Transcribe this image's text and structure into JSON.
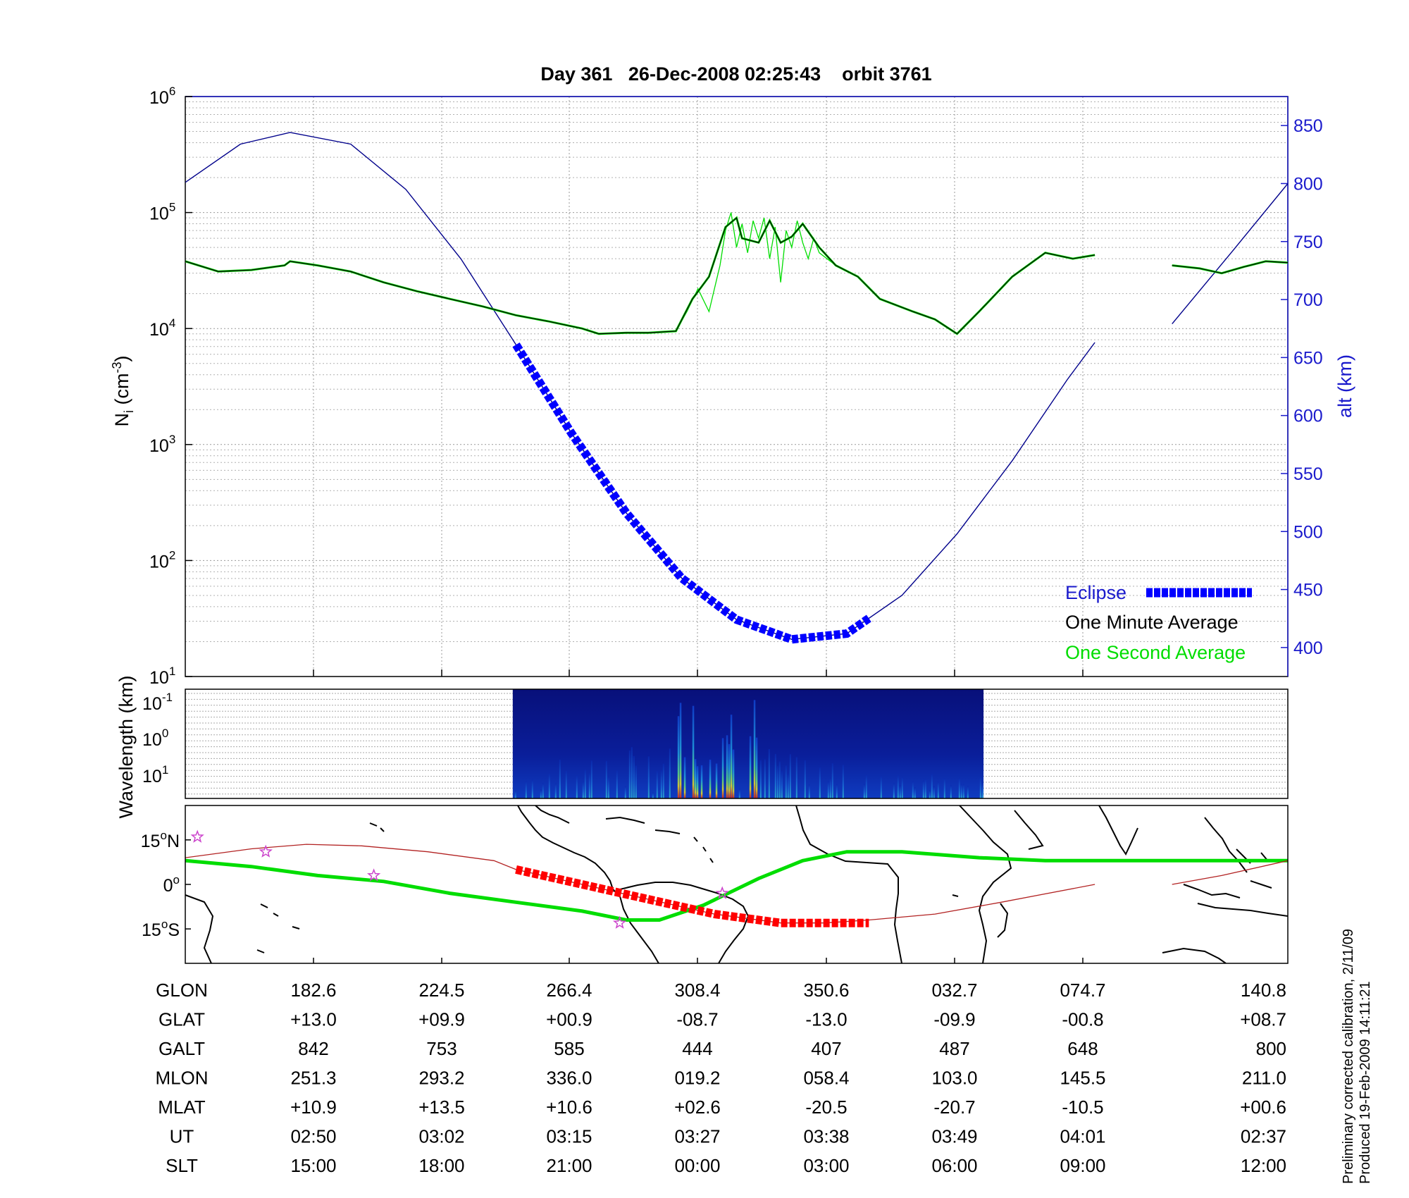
{
  "title": "Day 361   26-Dec-2008 02:25:43    orbit 3761",
  "footer": {
    "line1": "Preliminary corrected calibration, 2/11/09",
    "line2": "Produced 19-Feb-2009 14:11:21"
  },
  "colors": {
    "eclipse": "#0000ff",
    "one_minute_average": "#000000",
    "one_second_average": "#00dd00",
    "altitude_curve": "#00008b",
    "ground_track_eclipse": "#ff0000",
    "magnetic_equator": "#00dd00",
    "stars": "#cc44cc"
  },
  "chart_data": [
    {
      "type": "line",
      "panel": "density",
      "ylabel_left": "N_i (cm^-3)",
      "ylabel_right": "alt (km)",
      "yscale_left": "log",
      "ylim_left": [
        10,
        1000000
      ],
      "left_ticks": [
        {
          "base": "10",
          "exp": "1"
        },
        {
          "base": "10",
          "exp": "2"
        },
        {
          "base": "10",
          "exp": "3"
        },
        {
          "base": "10",
          "exp": "4"
        },
        {
          "base": "10",
          "exp": "5"
        },
        {
          "base": "10",
          "exp": "6"
        }
      ],
      "ylim_right": [
        375,
        875
      ],
      "right_ticks": [
        "400",
        "450",
        "500",
        "550",
        "600",
        "650",
        "700",
        "750",
        "800",
        "850"
      ],
      "grid": true,
      "legend": {
        "placement": "bottom-right",
        "entries": [
          "Eclipse",
          "One Minute Average",
          "One Second Average"
        ]
      },
      "series": [
        {
          "name": "One Minute Average",
          "x_units": "fraction of orbit",
          "x": [
            0.0,
            0.03,
            0.06,
            0.09,
            0.095,
            0.12,
            0.15,
            0.18,
            0.21,
            0.24,
            0.27,
            0.3,
            0.33,
            0.36,
            0.375,
            0.4,
            0.42,
            0.445,
            0.46,
            0.475,
            0.49,
            0.5,
            0.505,
            0.52,
            0.53,
            0.54,
            0.55,
            0.56,
            0.575,
            0.59,
            0.61,
            0.63,
            0.66,
            0.68,
            0.7,
            0.72,
            0.75,
            0.78,
            0.805,
            0.825
          ],
          "y": [
            38000,
            31000,
            32000,
            35000,
            38000,
            35000,
            31000,
            25000,
            21000,
            18000,
            15500,
            13000,
            11500,
            10000,
            9000,
            9200,
            9200,
            9500,
            18000,
            28000,
            75000,
            90000,
            60000,
            55000,
            85000,
            55000,
            62000,
            80000,
            50000,
            35000,
            28000,
            18000,
            14000,
            12000,
            9000,
            14000,
            28000,
            45000,
            40000,
            43000
          ]
        },
        {
          "name": "One Minute Average (after gap)",
          "x_units": "fraction of orbit",
          "x": [
            0.895,
            0.92,
            0.94,
            0.96,
            0.98,
            1.0
          ],
          "y": [
            35000,
            33000,
            30000,
            34000,
            38000,
            37000
          ]
        },
        {
          "name": "One Second Average",
          "x_units": "fraction of orbit",
          "x": [
            0.375,
            0.4,
            0.42,
            0.445,
            0.455,
            0.465,
            0.475,
            0.485,
            0.49,
            0.495,
            0.5,
            0.505,
            0.51,
            0.515,
            0.52,
            0.525,
            0.53,
            0.535,
            0.54,
            0.545,
            0.55,
            0.555,
            0.56,
            0.565,
            0.57,
            0.575,
            0.59
          ],
          "y": [
            9000,
            9200,
            9200,
            9500,
            14000,
            22000,
            14000,
            35000,
            70000,
            100000,
            50000,
            80000,
            45000,
            85000,
            60000,
            90000,
            40000,
            75000,
            25000,
            70000,
            50000,
            85000,
            55000,
            40000,
            60000,
            45000,
            35000
          ]
        },
        {
          "name": "alt (km)",
          "axis": "right",
          "x_units": "fraction of orbit",
          "x": [
            0.0,
            0.05,
            0.095,
            0.15,
            0.2,
            0.25,
            0.3,
            0.35,
            0.4,
            0.45,
            0.5,
            0.55,
            0.6,
            0.65,
            0.7,
            0.75,
            0.8,
            0.825
          ],
          "y": [
            801,
            834,
            844,
            834,
            795,
            735,
            661,
            585,
            516,
            460,
            424,
            407,
            412,
            445,
            498,
            561,
            631,
            663
          ]
        },
        {
          "name": "alt (km) (after gap)",
          "axis": "right",
          "x_units": "fraction of orbit",
          "x": [
            0.895,
            0.95,
            1.0
          ],
          "y": [
            679,
            742,
            800
          ]
        }
      ],
      "eclipse_range": [
        0.3,
        0.62
      ]
    },
    {
      "type": "heatmap",
      "panel": "spectrogram",
      "ylabel": "Wavelength (km)",
      "yscale": "log",
      "y_ticks": [
        {
          "base": "10",
          "exp": "-1"
        },
        {
          "base": "10",
          "exp": "0"
        },
        {
          "base": "10",
          "exp": "1"
        }
      ],
      "data_range": [
        0.297,
        0.724
      ],
      "intense_ranges": [
        [
          0.44,
          0.48
        ],
        [
          0.47,
          0.5
        ],
        [
          0.505,
          0.52
        ]
      ]
    },
    {
      "type": "map",
      "panel": "ground track",
      "y_ticks": [
        {
          "deg": "15",
          "unit": "o",
          "dir": "N"
        },
        {
          "deg": "0",
          "unit": "o",
          "dir": ""
        },
        {
          "deg": "15",
          "unit": "o",
          "dir": "S"
        }
      ],
      "ylim": [
        -25,
        25
      ]
    }
  ],
  "table": {
    "rows": [
      {
        "label": "GLON",
        "values": [
          "182.6",
          "224.5",
          "266.4",
          "308.4",
          "350.6",
          "032.7",
          "074.7",
          "140.8"
        ]
      },
      {
        "label": "GLAT",
        "values": [
          "+13.0",
          "+09.9",
          "+00.9",
          "-08.7",
          "-13.0",
          "-09.9",
          "-00.8",
          "+08.7"
        ]
      },
      {
        "label": "GALT",
        "values": [
          "842",
          "753",
          "585",
          "444",
          "407",
          "487",
          "648",
          "800"
        ]
      },
      {
        "label": "MLON",
        "values": [
          "251.3",
          "293.2",
          "336.0",
          "019.2",
          "058.4",
          "103.0",
          "145.5",
          "211.0"
        ]
      },
      {
        "label": "MLAT",
        "values": [
          "+10.9",
          "+13.5",
          "+10.6",
          "+02.6",
          "-20.5",
          "-20.7",
          "-10.5",
          "+00.6"
        ]
      },
      {
        "label": "UT",
        "values": [
          "02:50",
          "03:02",
          "03:15",
          "03:27",
          "03:38",
          "03:49",
          "04:01",
          "02:37"
        ]
      },
      {
        "label": "SLT",
        "values": [
          "15:00",
          "18:00",
          "21:00",
          "00:00",
          "03:00",
          "06:00",
          "09:00",
          "12:00"
        ]
      }
    ]
  }
}
